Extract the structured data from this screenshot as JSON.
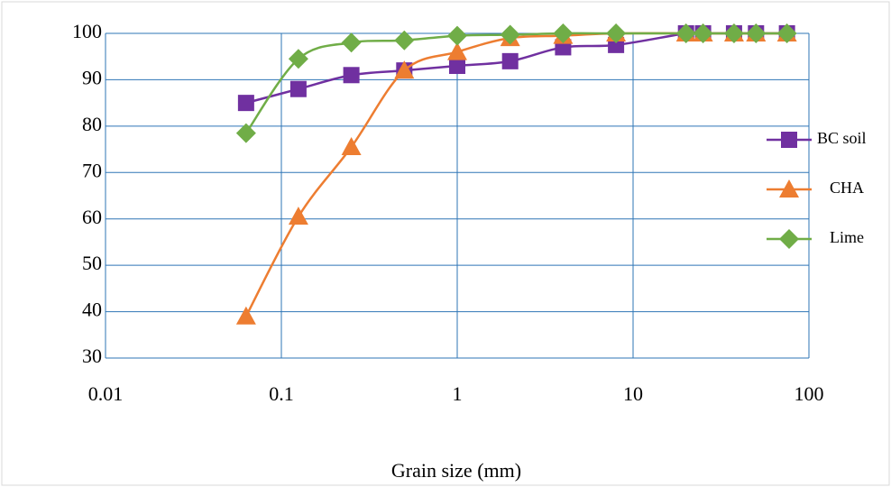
{
  "chart_data": {
    "type": "line",
    "x_label": "Grain size (mm)",
    "x": [
      0.063,
      0.125,
      0.25,
      0.5,
      1,
      2,
      4,
      8,
      20,
      25,
      37.5,
      50,
      75
    ],
    "series": [
      {
        "name": "BC soil",
        "color": "#7030a0",
        "marker": "square",
        "values": [
          85,
          88,
          91,
          92,
          93,
          94,
          97,
          97.5,
          100,
          100,
          100,
          100,
          100
        ]
      },
      {
        "name": "CHA",
        "color": "#ed7d31",
        "marker": "triangle",
        "values": [
          39,
          60.5,
          75.5,
          92,
          96,
          99,
          99.5,
          100,
          100,
          100,
          100,
          100,
          100
        ]
      },
      {
        "name": "Lime",
        "color": "#70ad47",
        "marker": "diamond",
        "values": [
          78.5,
          94.5,
          98,
          98.5,
          99.5,
          99.7,
          100,
          100,
          100,
          100,
          100,
          100,
          100
        ]
      }
    ],
    "xscale": "log",
    "xlim": [
      0.01,
      100
    ],
    "xticks": [
      0.01,
      0.1,
      1,
      10,
      100
    ],
    "ylim": [
      30,
      100
    ],
    "yticks": [
      30,
      40,
      50,
      60,
      70,
      80,
      90,
      100
    ],
    "grid": true,
    "grid_color": "#2e75b6",
    "legend": "right"
  }
}
